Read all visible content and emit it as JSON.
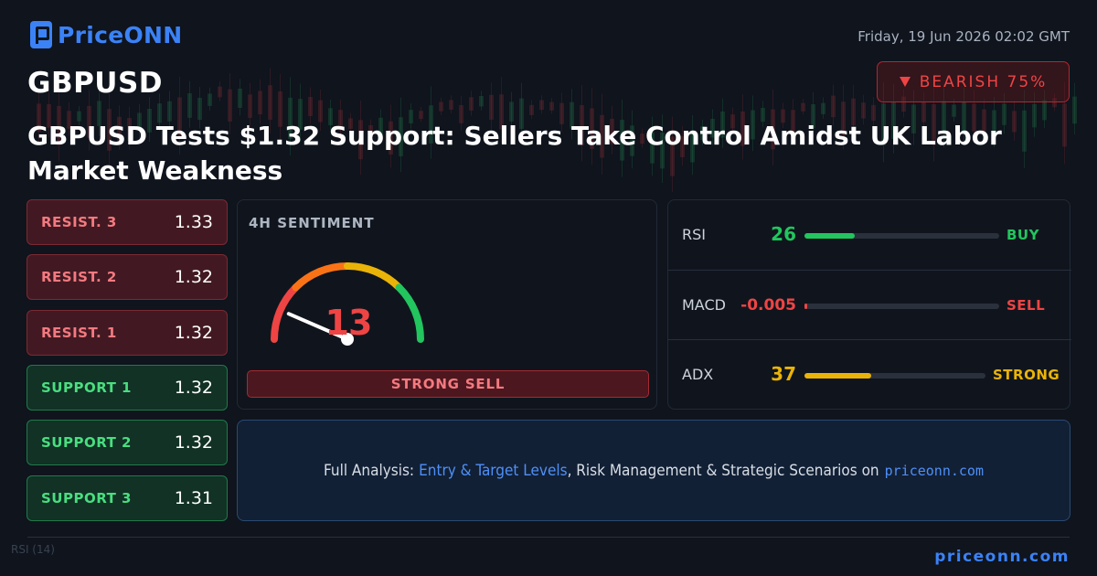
{
  "brand": {
    "logo_text": "PriceONN",
    "logo_icon": "priceonn-p-icon"
  },
  "datetime": "Friday, 19 Jun 2026 02:02 GMT",
  "symbol": "GBPUSD",
  "bias": {
    "label": "BEARISH 75%",
    "icon": "triangle-down-icon",
    "color": "#ef4444"
  },
  "headline": "GBPUSD Tests $1.32 Support: Sellers Take Control Amidst UK Labor Market Weakness",
  "levels": [
    {
      "name": "RESIST. 3",
      "value": "1.33",
      "kind": "resistance"
    },
    {
      "name": "RESIST. 2",
      "value": "1.32",
      "kind": "resistance"
    },
    {
      "name": "RESIST. 1",
      "value": "1.32",
      "kind": "resistance"
    },
    {
      "name": "SUPPORT 1",
      "value": "1.32",
      "kind": "support"
    },
    {
      "name": "SUPPORT 2",
      "value": "1.32",
      "kind": "support"
    },
    {
      "name": "SUPPORT 3",
      "value": "1.31",
      "kind": "support"
    }
  ],
  "sentiment": {
    "title": "4H SENTIMENT",
    "score": "13",
    "score_value": 13,
    "scale_max": 100,
    "signal": "STRONG SELL",
    "gauge_colors": [
      "#ef4444",
      "#f97316",
      "#eab308",
      "#22c55e"
    ]
  },
  "indicators": [
    {
      "name": "RSI",
      "value": "26",
      "level": 0.26,
      "signal": "BUY",
      "color": "#22c55e"
    },
    {
      "name": "MACD",
      "value": "-0.005",
      "level": 0.0,
      "signal": "SELL",
      "color": "#ef4444"
    },
    {
      "name": "ADX",
      "value": "37",
      "level": 0.37,
      "signal": "STRONG",
      "color": "#eab308"
    }
  ],
  "cta": {
    "prefix": "Full Analysis:",
    "highlight": "Entry & Target Levels",
    "middle": ", Risk Management & Strategic Scenarios on",
    "site": "priceonn.com"
  },
  "footer_url": "priceonn.com",
  "background": {
    "rsi_label": "RSI (14)"
  }
}
